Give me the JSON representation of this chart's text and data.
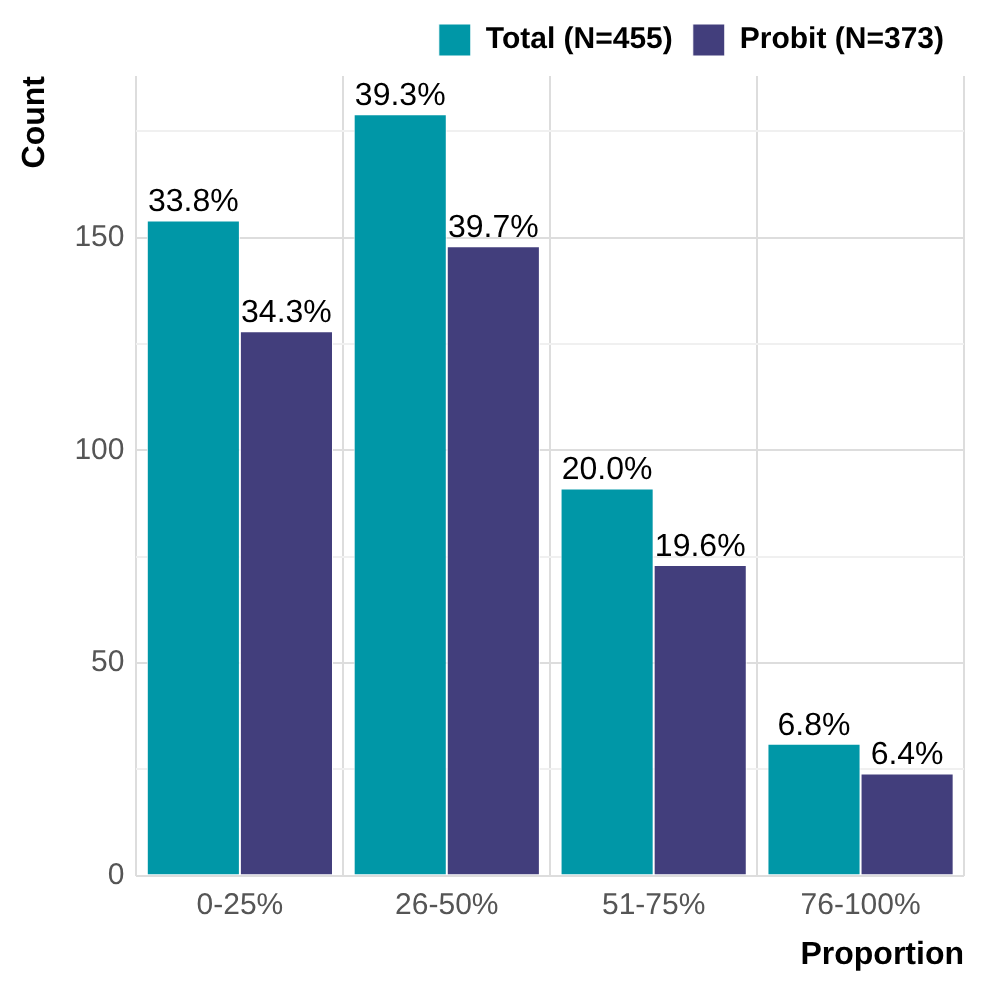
{
  "chart_data": {
    "type": "bar",
    "xlabel": "Proportion",
    "ylabel": "Count",
    "categories": [
      "0-25%",
      "26-50%",
      "51-75%",
      "76-100%"
    ],
    "series": [
      {
        "name": "Total (N=455)",
        "color": "#0097a7",
        "values": [
          154,
          179,
          91,
          31
        ]
      },
      {
        "name": "Probit (N=373)",
        "color": "#423e7c",
        "values": [
          128,
          148,
          73,
          24
        ]
      }
    ],
    "annotations": [
      {
        "text": "33.8%",
        "x": "0-25%",
        "y": 154
      },
      {
        "text": "39.3%",
        "x": "26-50%",
        "y": 179
      },
      {
        "text": "20.0%",
        "x": "51-75%",
        "y": 91
      },
      {
        "text": "6.8%",
        "x": "76-100%",
        "y": 31
      },
      {
        "text": "34.3%",
        "x": "0-25%",
        "y": 128
      },
      {
        "text": "39.7%",
        "x": "26-50%",
        "y": 148
      },
      {
        "text": "19.6%",
        "x": "51-75%",
        "y": 73
      },
      {
        "text": "6.4%",
        "x": "76-100%",
        "y": 24
      }
    ],
    "ylim": [
      0,
      188
    ],
    "yticks": [
      0,
      {
        "value": 25,
        "label": null
      },
      50,
      {
        "value": 75,
        "label": null
      },
      100,
      {
        "value": 125,
        "label": null
      },
      150,
      {
        "value": 175,
        "label": null
      }
    ],
    "grid": true,
    "legend": "top right"
  }
}
